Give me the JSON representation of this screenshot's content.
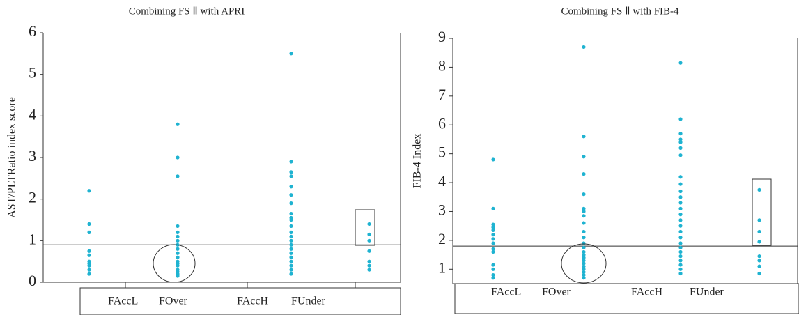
{
  "chart_data": [
    {
      "type": "strip",
      "title": "Combining FS Ⅱ with APRI",
      "y_label": "AST/PLTRatio index score",
      "ylim": [
        0,
        6
      ],
      "yticks": [
        0,
        1,
        2,
        3,
        4,
        5,
        6
      ],
      "color": "#1fb3d1",
      "cutoff": 0.9,
      "category_labels": [
        "FAccL",
        "FOver",
        "FAccH",
        "FUnder"
      ],
      "series": [
        {
          "values": [
            2.2,
            1.4,
            1.2,
            0.75,
            0.65,
            0.5,
            0.45,
            0.4,
            0.3,
            0.2
          ]
        },
        {
          "values": [
            3.8,
            3.0,
            2.55,
            1.35,
            1.2,
            1.1,
            1.0,
            0.9,
            0.8,
            0.7,
            0.6,
            0.5,
            0.45,
            0.4,
            0.3,
            0.25,
            0.2,
            0.15
          ]
        },
        {
          "values": [
            5.5,
            2.9,
            2.65,
            2.55,
            2.3,
            2.1,
            1.9,
            1.65,
            1.55,
            1.5,
            1.35,
            1.2,
            1.1,
            1.0,
            0.9,
            0.8,
            0.7,
            0.6,
            0.5,
            0.4,
            0.3,
            0.2
          ]
        },
        {
          "values": [
            1.4,
            1.15,
            1.0,
            0.75,
            0.5,
            0.4,
            0.3
          ]
        }
      ]
    },
    {
      "type": "strip",
      "title": "Combining FS Ⅱ with FIB-4",
      "y_label": "FIB-4 Index",
      "ylim": [
        0.5,
        9
      ],
      "yticks": [
        1,
        2,
        3,
        4,
        5,
        6,
        7,
        8,
        9
      ],
      "color": "#1fb3d1",
      "cutoff": 1.8,
      "category_labels": [
        "FAccL",
        "FOver",
        "FAccH",
        "FUnder"
      ],
      "series": [
        {
          "values": [
            4.8,
            3.1,
            2.55,
            2.45,
            2.35,
            2.2,
            2.05,
            1.9,
            1.7,
            1.6,
            1.15,
            1.0,
            0.8,
            0.7
          ]
        },
        {
          "values": [
            8.7,
            5.6,
            4.9,
            4.3,
            3.6,
            3.1,
            3.0,
            2.85,
            2.6,
            2.3,
            2.1,
            1.9,
            1.75,
            1.6,
            1.5,
            1.4,
            1.3,
            1.2,
            1.1,
            1.0,
            0.9,
            0.8,
            0.7
          ]
        },
        {
          "values": [
            8.15,
            6.2,
            5.7,
            5.5,
            5.4,
            5.2,
            4.95,
            4.2,
            3.95,
            3.7,
            3.5,
            3.3,
            3.1,
            2.9,
            2.7,
            2.5,
            2.3,
            2.1,
            1.9,
            1.75,
            1.6,
            1.45,
            1.3,
            1.15,
            1.0,
            0.85
          ]
        },
        {
          "values": [
            3.75,
            2.7,
            2.3,
            1.95,
            1.45,
            1.3,
            1.1,
            0.85
          ]
        }
      ]
    }
  ]
}
